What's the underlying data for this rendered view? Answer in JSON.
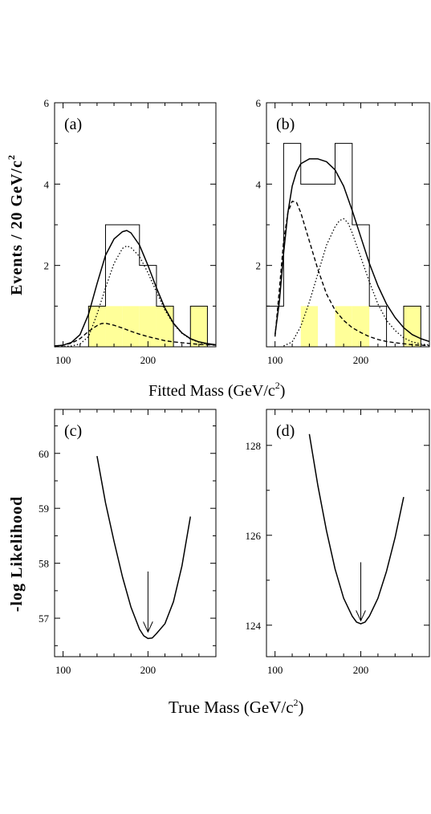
{
  "axes": {
    "top_xlabel": "Fitted Mass (GeV/c",
    "top_xlabel_sup": "2",
    "top_xlabel_close": ")",
    "top_ylabel": "Events / 20 GeV/c",
    "top_ylabel_sup": "2",
    "bottom_xlabel": "True Mass (GeV/c",
    "bottom_xlabel_sup": "2",
    "bottom_xlabel_close": ")",
    "bottom_ylabel": "-log Likelihood"
  },
  "style": {
    "highlight_fill": "#ffff99",
    "line_color": "#000000"
  },
  "chart_data": [
    {
      "panel": "(a)",
      "type": "histogram+line",
      "xlim": [
        90,
        280
      ],
      "ylim": [
        0,
        6
      ],
      "xticks": [
        100,
        200
      ],
      "yticks": [
        2,
        4,
        6
      ],
      "histogram": {
        "bin_width": 20,
        "bins": [
          [
            130,
            150,
            1
          ],
          [
            150,
            170,
            1
          ],
          [
            170,
            190,
            1
          ],
          [
            190,
            210,
            1
          ],
          [
            210,
            230,
            1
          ],
          [
            250,
            270,
            1
          ]
        ],
        "outline": [
          [
            90,
            0
          ],
          [
            130,
            0
          ],
          [
            130,
            1
          ],
          [
            150,
            1
          ],
          [
            150,
            3
          ],
          [
            190,
            3
          ],
          [
            190,
            2
          ],
          [
            210,
            2
          ],
          [
            210,
            1
          ],
          [
            230,
            1
          ],
          [
            230,
            0
          ],
          [
            250,
            0
          ],
          [
            250,
            1
          ],
          [
            270,
            1
          ],
          [
            270,
            0
          ],
          [
            280,
            0
          ]
        ]
      },
      "curves": [
        {
          "style": "solid",
          "points": [
            [
              90,
              0.02
            ],
            [
              100,
              0.04
            ],
            [
              110,
              0.11
            ],
            [
              120,
              0.3
            ],
            [
              130,
              0.8
            ],
            [
              140,
              1.55
            ],
            [
              150,
              2.25
            ],
            [
              160,
              2.65
            ],
            [
              170,
              2.83
            ],
            [
              175,
              2.86
            ],
            [
              180,
              2.8
            ],
            [
              190,
              2.5
            ],
            [
              200,
              2.0
            ],
            [
              210,
              1.45
            ],
            [
              220,
              0.95
            ],
            [
              230,
              0.58
            ],
            [
              240,
              0.34
            ],
            [
              250,
              0.2
            ],
            [
              260,
              0.12
            ],
            [
              270,
              0.08
            ],
            [
              280,
              0.05
            ]
          ]
        },
        {
          "style": "dotted",
          "points": [
            [
              90,
              0.0
            ],
            [
              110,
              0.02
            ],
            [
              120,
              0.07
            ],
            [
              130,
              0.25
            ],
            [
              140,
              0.8
            ],
            [
              150,
              1.45
            ],
            [
              160,
              2.05
            ],
            [
              170,
              2.42
            ],
            [
              175,
              2.48
            ],
            [
              180,
              2.44
            ],
            [
              190,
              2.22
            ],
            [
              200,
              1.82
            ],
            [
              210,
              1.35
            ],
            [
              220,
              0.9
            ],
            [
              230,
              0.56
            ],
            [
              240,
              0.33
            ],
            [
              250,
              0.19
            ],
            [
              260,
              0.11
            ],
            [
              270,
              0.06
            ],
            [
              280,
              0.04
            ]
          ]
        },
        {
          "style": "dashed",
          "points": [
            [
              90,
              0.02
            ],
            [
              100,
              0.04
            ],
            [
              110,
              0.09
            ],
            [
              120,
              0.2
            ],
            [
              130,
              0.38
            ],
            [
              140,
              0.52
            ],
            [
              145,
              0.57
            ],
            [
              150,
              0.58
            ],
            [
              160,
              0.53
            ],
            [
              170,
              0.46
            ],
            [
              180,
              0.38
            ],
            [
              190,
              0.31
            ],
            [
              200,
              0.25
            ],
            [
              210,
              0.2
            ],
            [
              220,
              0.15
            ],
            [
              230,
              0.12
            ],
            [
              240,
              0.1
            ],
            [
              260,
              0.06
            ],
            [
              280,
              0.04
            ]
          ]
        }
      ]
    },
    {
      "panel": "(b)",
      "type": "histogram+line",
      "xlim": [
        90,
        280
      ],
      "ylim": [
        0,
        6
      ],
      "xticks": [
        100,
        200
      ],
      "yticks": [
        2,
        4,
        6
      ],
      "histogram": {
        "bin_width": 20,
        "bins": [
          [
            130,
            150,
            1
          ],
          [
            170,
            190,
            1
          ],
          [
            190,
            210,
            1
          ],
          [
            250,
            270,
            1
          ]
        ],
        "outline": [
          [
            90,
            1
          ],
          [
            110,
            1
          ],
          [
            110,
            5
          ],
          [
            130,
            5
          ],
          [
            130,
            4
          ],
          [
            170,
            4
          ],
          [
            170,
            5
          ],
          [
            190,
            5
          ],
          [
            190,
            3
          ],
          [
            210,
            3
          ],
          [
            210,
            1
          ],
          [
            230,
            1
          ],
          [
            230,
            0
          ],
          [
            250,
            0
          ],
          [
            250,
            1
          ],
          [
            270,
            1
          ],
          [
            270,
            0
          ],
          [
            280,
            0
          ]
        ]
      },
      "curves": [
        {
          "style": "solid",
          "points": [
            [
              100,
              0.3
            ],
            [
              105,
              1.1
            ],
            [
              110,
              2.3
            ],
            [
              115,
              3.3
            ],
            [
              120,
              3.95
            ],
            [
              125,
              4.3
            ],
            [
              130,
              4.5
            ],
            [
              140,
              4.62
            ],
            [
              150,
              4.62
            ],
            [
              160,
              4.55
            ],
            [
              170,
              4.35
            ],
            [
              180,
              3.95
            ],
            [
              190,
              3.35
            ],
            [
              200,
              2.7
            ],
            [
              210,
              2.05
            ],
            [
              220,
              1.5
            ],
            [
              230,
              1.05
            ],
            [
              240,
              0.72
            ],
            [
              250,
              0.47
            ],
            [
              260,
              0.3
            ],
            [
              270,
              0.2
            ],
            [
              280,
              0.13
            ]
          ]
        },
        {
          "style": "dashed",
          "points": [
            [
              100,
              0.25
            ],
            [
              105,
              1.4
            ],
            [
              110,
              2.6
            ],
            [
              115,
              3.3
            ],
            [
              120,
              3.58
            ],
            [
              125,
              3.55
            ],
            [
              130,
              3.3
            ],
            [
              140,
              2.6
            ],
            [
              150,
              1.9
            ],
            [
              160,
              1.3
            ],
            [
              170,
              0.9
            ],
            [
              180,
              0.65
            ],
            [
              190,
              0.47
            ],
            [
              200,
              0.35
            ],
            [
              210,
              0.25
            ],
            [
              220,
              0.18
            ],
            [
              230,
              0.13
            ],
            [
              240,
              0.1
            ],
            [
              260,
              0.05
            ],
            [
              280,
              0.03
            ]
          ]
        },
        {
          "style": "dotted",
          "points": [
            [
              110,
              0.02
            ],
            [
              120,
              0.12
            ],
            [
              130,
              0.5
            ],
            [
              140,
              1.1
            ],
            [
              150,
              1.8
            ],
            [
              160,
              2.5
            ],
            [
              170,
              2.95
            ],
            [
              175,
              3.1
            ],
            [
              180,
              3.15
            ],
            [
              185,
              3.05
            ],
            [
              190,
              2.8
            ],
            [
              200,
              2.2
            ],
            [
              210,
              1.6
            ],
            [
              220,
              1.05
            ],
            [
              230,
              0.65
            ],
            [
              240,
              0.4
            ],
            [
              250,
              0.22
            ],
            [
              260,
              0.12
            ],
            [
              270,
              0.07
            ],
            [
              280,
              0.04
            ]
          ]
        }
      ]
    },
    {
      "panel": "(c)",
      "type": "line",
      "xlim": [
        90,
        280
      ],
      "ylim": [
        56.3,
        60.8
      ],
      "xticks": [
        100,
        200
      ],
      "yticks": [
        57,
        58,
        59,
        60
      ],
      "arrow": {
        "x": 200,
        "from": 57.85,
        "to": 56.75
      },
      "points": [
        [
          140,
          59.95
        ],
        [
          150,
          59.1
        ],
        [
          160,
          58.4
        ],
        [
          170,
          57.75
        ],
        [
          180,
          57.2
        ],
        [
          190,
          56.8
        ],
        [
          195,
          56.68
        ],
        [
          200,
          56.63
        ],
        [
          205,
          56.64
        ],
        [
          210,
          56.72
        ],
        [
          220,
          56.9
        ],
        [
          230,
          57.3
        ],
        [
          240,
          57.95
        ],
        [
          250,
          58.85
        ]
      ]
    },
    {
      "panel": "(d)",
      "type": "line",
      "xlim": [
        90,
        280
      ],
      "ylim": [
        123.3,
        128.8
      ],
      "xticks": [
        100,
        200
      ],
      "yticks": [
        124,
        126,
        128
      ],
      "arrow": {
        "x": 200,
        "from": 125.4,
        "to": 124.1
      },
      "points": [
        [
          140,
          128.25
        ],
        [
          150,
          127.1
        ],
        [
          160,
          126.1
        ],
        [
          170,
          125.25
        ],
        [
          180,
          124.6
        ],
        [
          190,
          124.2
        ],
        [
          195,
          124.07
        ],
        [
          200,
          124.03
        ],
        [
          205,
          124.07
        ],
        [
          210,
          124.2
        ],
        [
          220,
          124.6
        ],
        [
          230,
          125.2
        ],
        [
          240,
          125.95
        ],
        [
          250,
          126.85
        ]
      ]
    }
  ]
}
